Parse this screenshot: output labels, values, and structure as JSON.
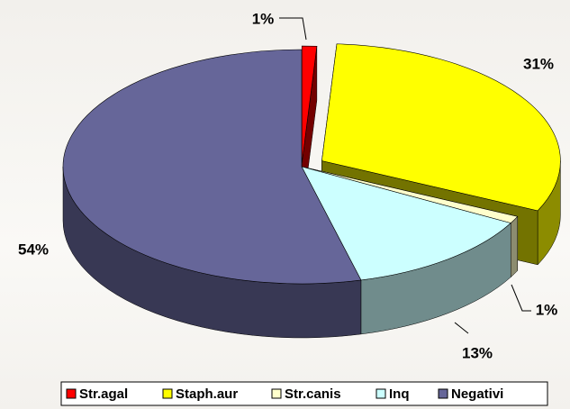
{
  "chart_data": {
    "type": "pie",
    "categories": [
      "Str.agal",
      "Staph.aur",
      "Str.canis",
      "Inq",
      "Negativi"
    ],
    "values": [
      1,
      31,
      1,
      13,
      54
    ],
    "value_labels": [
      "1%",
      "31%",
      "1%",
      "13%",
      "54%"
    ],
    "colors": [
      "#ff0000",
      "#ffff00",
      "#ffffcc",
      "#ccffff",
      "#666699"
    ],
    "legend": "bottom"
  }
}
